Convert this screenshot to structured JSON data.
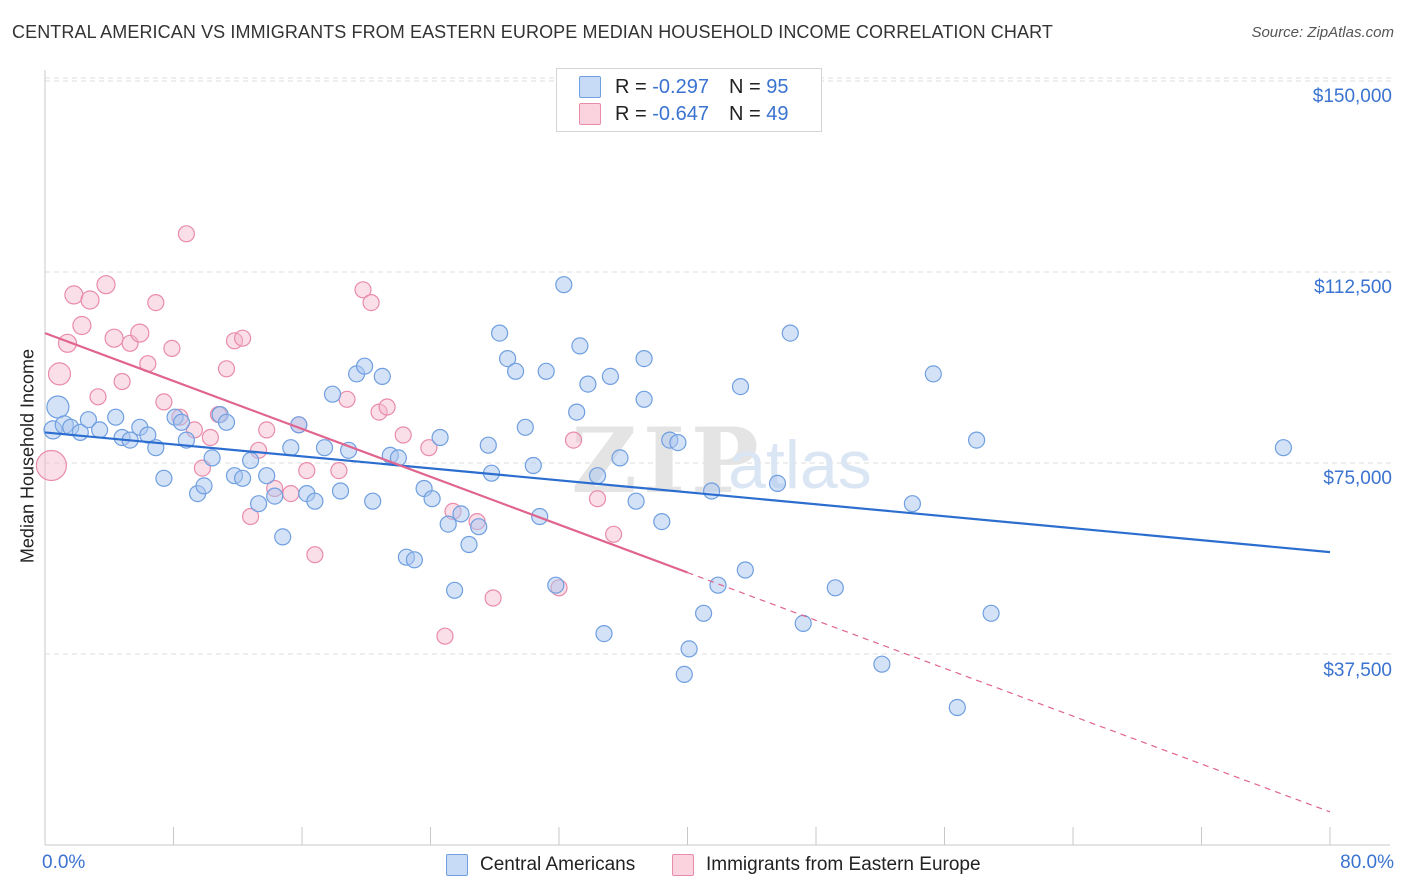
{
  "title": "CENTRAL AMERICAN VS IMMIGRANTS FROM EASTERN EUROPE MEDIAN HOUSEHOLD INCOME CORRELATION CHART",
  "source": "Source: ZipAtlas.com",
  "watermark": {
    "zip": "ZIP",
    "atlas": "atlas"
  },
  "legend": {
    "r_label": "R =",
    "n_label": "N =",
    "rows": [
      {
        "name": "Central Americans",
        "r": "-0.297",
        "n": "95",
        "color": "#a9c6f0"
      },
      {
        "name": "Immigrants from Eastern Europe",
        "r": "-0.647",
        "n": "49",
        "color": "#f5b8cb"
      }
    ]
  },
  "colors": {
    "blue_fill": "#a9c6f0",
    "blue_stroke": "#6f9fe0",
    "blue_line": "#2c6ed0",
    "pink_fill": "#f5b8cb",
    "pink_stroke": "#e98bab",
    "pink_line": "#e0648f",
    "tick_text": "#3a73d0",
    "grid": "#dcdcdc"
  },
  "chart_data": {
    "type": "scatter",
    "title": "CENTRAL AMERICAN VS IMMIGRANTS FROM EASTERN EUROPE MEDIAN HOUSEHOLD INCOME CORRELATION CHART",
    "xlabel": "",
    "ylabel": "Median Household Income",
    "xlim": [
      0,
      80
    ],
    "ylim": [
      0,
      155000
    ],
    "x_tick_labels": [
      "0.0%",
      "80.0%"
    ],
    "y_ticks": [
      37500,
      75000,
      112500,
      150000
    ],
    "y_tick_labels": [
      "$37,500",
      "$75,000",
      "$112,500",
      "$150,000"
    ],
    "series": [
      {
        "name": "Central Americans",
        "trend": {
          "x": [
            0,
            80
          ],
          "y": [
            81000,
            57500
          ]
        },
        "points": [
          [
            0.5,
            81500,
            9
          ],
          [
            0.8,
            86000,
            11
          ],
          [
            1.2,
            82500,
            9
          ],
          [
            1.6,
            82000,
            8
          ],
          [
            2.2,
            81000,
            8
          ],
          [
            2.7,
            83500,
            8
          ],
          [
            3.4,
            81500,
            8
          ],
          [
            4.4,
            84000,
            8
          ],
          [
            4.8,
            80000,
            8
          ],
          [
            5.3,
            79500,
            8
          ],
          [
            5.9,
            82000,
            8
          ],
          [
            6.4,
            80500,
            8
          ],
          [
            6.9,
            78000,
            8
          ],
          [
            7.4,
            72000,
            8
          ],
          [
            8.1,
            84000,
            8
          ],
          [
            8.5,
            83000,
            8
          ],
          [
            8.8,
            79500,
            8
          ],
          [
            9.5,
            69000,
            8
          ],
          [
            9.9,
            70500,
            8
          ],
          [
            10.4,
            76000,
            8
          ],
          [
            10.9,
            84500,
            8
          ],
          [
            11.3,
            83000,
            8
          ],
          [
            11.8,
            72500,
            8
          ],
          [
            12.3,
            72000,
            8
          ],
          [
            12.8,
            75500,
            8
          ],
          [
            13.3,
            67000,
            8
          ],
          [
            13.8,
            72500,
            8
          ],
          [
            14.3,
            68500,
            8
          ],
          [
            14.8,
            60500,
            8
          ],
          [
            15.3,
            78000,
            8
          ],
          [
            15.8,
            82500,
            8
          ],
          [
            16.3,
            69000,
            8
          ],
          [
            16.8,
            67500,
            8
          ],
          [
            17.4,
            78000,
            8
          ],
          [
            17.9,
            88500,
            8
          ],
          [
            18.4,
            69500,
            8
          ],
          [
            18.9,
            77500,
            8
          ],
          [
            19.4,
            92500,
            8
          ],
          [
            19.9,
            94000,
            8
          ],
          [
            20.4,
            67500,
            8
          ],
          [
            21.0,
            92000,
            8
          ],
          [
            21.5,
            76500,
            8
          ],
          [
            22.0,
            76000,
            8
          ],
          [
            22.5,
            56500,
            8
          ],
          [
            23.0,
            56000,
            8
          ],
          [
            23.6,
            70000,
            8
          ],
          [
            24.1,
            68000,
            8
          ],
          [
            24.6,
            80000,
            8
          ],
          [
            25.1,
            63000,
            8
          ],
          [
            25.5,
            50000,
            8
          ],
          [
            25.9,
            65000,
            8
          ],
          [
            26.4,
            59000,
            8
          ],
          [
            27.0,
            62500,
            8
          ],
          [
            27.6,
            78500,
            8
          ],
          [
            27.8,
            73000,
            8
          ],
          [
            28.3,
            100500,
            8
          ],
          [
            28.8,
            95500,
            8
          ],
          [
            29.3,
            93000,
            8
          ],
          [
            29.9,
            82000,
            8
          ],
          [
            30.4,
            74500,
            8
          ],
          [
            30.8,
            64500,
            8
          ],
          [
            31.2,
            93000,
            8
          ],
          [
            31.8,
            51000,
            8
          ],
          [
            32.3,
            110000,
            8
          ],
          [
            33.1,
            85000,
            8
          ],
          [
            33.3,
            98000,
            8
          ],
          [
            33.8,
            90500,
            8
          ],
          [
            34.4,
            72500,
            8
          ],
          [
            34.8,
            41500,
            8
          ],
          [
            35.2,
            92000,
            8
          ],
          [
            35.8,
            76000,
            8
          ],
          [
            36.8,
            67500,
            8
          ],
          [
            37.3,
            95500,
            8
          ],
          [
            37.3,
            87500,
            8
          ],
          [
            38.4,
            63500,
            8
          ],
          [
            38.9,
            79500,
            8
          ],
          [
            39.4,
            79000,
            8
          ],
          [
            39.8,
            33500,
            8
          ],
          [
            40.1,
            38500,
            8
          ],
          [
            41.0,
            45500,
            8
          ],
          [
            41.5,
            69500,
            8
          ],
          [
            41.9,
            51000,
            8
          ],
          [
            43.3,
            90000,
            8
          ],
          [
            43.6,
            54000,
            8
          ],
          [
            45.6,
            71000,
            8
          ],
          [
            46.4,
            100500,
            8
          ],
          [
            47.2,
            43500,
            8
          ],
          [
            49.2,
            50500,
            8
          ],
          [
            52.1,
            35500,
            8
          ],
          [
            55.3,
            92500,
            8
          ],
          [
            56.8,
            27000,
            8
          ],
          [
            58.0,
            79500,
            8
          ],
          [
            58.9,
            45500,
            8
          ],
          [
            77.1,
            78000,
            8
          ],
          [
            54.0,
            67000,
            8
          ]
        ]
      },
      {
        "name": "Immigrants from Eastern Europe",
        "trend": {
          "x": [
            0,
            40
          ],
          "y": [
            100500,
            53500
          ]
        },
        "trend_extension": {
          "x": [
            40,
            80
          ],
          "y": [
            53500,
            6500
          ]
        },
        "points": [
          [
            0.4,
            74500,
            15
          ],
          [
            0.9,
            92500,
            11
          ],
          [
            1.4,
            98500,
            9
          ],
          [
            1.8,
            108000,
            9
          ],
          [
            2.3,
            102000,
            9
          ],
          [
            2.8,
            107000,
            9
          ],
          [
            3.3,
            88000,
            8
          ],
          [
            3.8,
            110000,
            9
          ],
          [
            4.3,
            99500,
            9
          ],
          [
            4.8,
            91000,
            8
          ],
          [
            5.3,
            98500,
            8
          ],
          [
            5.9,
            100500,
            9
          ],
          [
            6.4,
            94500,
            8
          ],
          [
            6.9,
            106500,
            8
          ],
          [
            7.4,
            87000,
            8
          ],
          [
            7.9,
            97500,
            8
          ],
          [
            8.4,
            84000,
            8
          ],
          [
            8.8,
            120000,
            8
          ],
          [
            9.3,
            81500,
            8
          ],
          [
            9.8,
            74000,
            8
          ],
          [
            10.3,
            80000,
            8
          ],
          [
            10.8,
            84500,
            8
          ],
          [
            11.3,
            93500,
            8
          ],
          [
            11.8,
            99000,
            8
          ],
          [
            12.3,
            99500,
            8
          ],
          [
            12.8,
            64500,
            8
          ],
          [
            13.3,
            77500,
            8
          ],
          [
            13.8,
            81500,
            8
          ],
          [
            14.3,
            70000,
            8
          ],
          [
            15.3,
            69000,
            8
          ],
          [
            15.8,
            82500,
            8
          ],
          [
            16.3,
            73500,
            8
          ],
          [
            16.8,
            57000,
            8
          ],
          [
            18.3,
            73500,
            8
          ],
          [
            18.8,
            87500,
            8
          ],
          [
            19.8,
            109000,
            8
          ],
          [
            20.3,
            106500,
            8
          ],
          [
            20.8,
            85000,
            8
          ],
          [
            21.3,
            86000,
            8
          ],
          [
            22.3,
            80500,
            8
          ],
          [
            23.9,
            78000,
            8
          ],
          [
            24.9,
            41000,
            8
          ],
          [
            25.4,
            65500,
            8
          ],
          [
            26.9,
            63500,
            8
          ],
          [
            27.9,
            48500,
            8
          ],
          [
            32.0,
            50500,
            8
          ],
          [
            32.9,
            79500,
            8
          ],
          [
            34.4,
            68000,
            8
          ],
          [
            35.4,
            61000,
            8
          ]
        ]
      }
    ]
  }
}
